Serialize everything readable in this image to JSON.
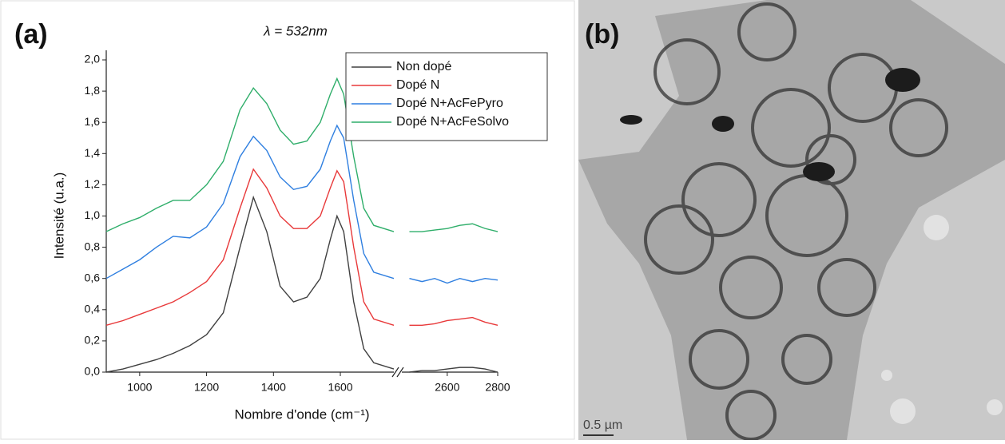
{
  "chart_data": {
    "type": "line",
    "panel_label": "(a)",
    "title": "λ = 532nm",
    "y_label": "Intensité (u.a.)",
    "x_label": "Nombre d'onde (cm⁻¹)",
    "ylim": [
      0,
      2.0
    ],
    "yticks": [
      {
        "value": 0,
        "label": "0,0"
      },
      {
        "value": 0.2,
        "label": "0,2"
      },
      {
        "value": 0.4,
        "label": "0,4"
      },
      {
        "value": 0.6,
        "label": "0,6"
      },
      {
        "value": 0.8,
        "label": "0,8"
      },
      {
        "value": 1.0,
        "label": "1,0"
      },
      {
        "value": 1.2,
        "label": "1,2"
      },
      {
        "value": 1.4,
        "label": "1,4"
      },
      {
        "value": 1.6,
        "label": "1,6"
      },
      {
        "value": 1.8,
        "label": "1,8"
      },
      {
        "value": 2.0,
        "label": "2,0"
      }
    ],
    "x_segments": [
      {
        "xlim": [
          900,
          1760
        ],
        "xticks": [
          1000,
          1200,
          1400,
          1600
        ]
      },
      {
        "xlim": [
          2420,
          2800
        ],
        "xticks": [
          2600,
          2800
        ]
      }
    ],
    "x": [
      900,
      950,
      1000,
      1050,
      1100,
      1150,
      1200,
      1250,
      1300,
      1340,
      1380,
      1420,
      1460,
      1500,
      1540,
      1570,
      1590,
      1610,
      1640,
      1670,
      1700,
      1760,
      2450,
      2500,
      2550,
      2600,
      2650,
      2700,
      2750,
      2800
    ],
    "series": [
      {
        "name": "Non dopé",
        "color": "#404040",
        "values": [
          0.0,
          0.02,
          0.05,
          0.08,
          0.12,
          0.17,
          0.24,
          0.38,
          0.8,
          1.12,
          0.9,
          0.55,
          0.45,
          0.48,
          0.6,
          0.85,
          1.0,
          0.9,
          0.45,
          0.15,
          0.06,
          0.02,
          0.0,
          0.01,
          0.01,
          0.02,
          0.03,
          0.03,
          0.02,
          0.0
        ]
      },
      {
        "name": "Dopé N",
        "color": "#e8393a",
        "values": [
          0.3,
          0.33,
          0.37,
          0.41,
          0.45,
          0.51,
          0.58,
          0.72,
          1.05,
          1.3,
          1.18,
          1.0,
          0.92,
          0.92,
          1.0,
          1.18,
          1.29,
          1.22,
          0.8,
          0.45,
          0.34,
          0.3,
          0.3,
          0.3,
          0.31,
          0.33,
          0.34,
          0.35,
          0.32,
          0.3
        ]
      },
      {
        "name": "Dopé N+AcFePyro",
        "color": "#2f7fe0",
        "values": [
          0.6,
          0.66,
          0.72,
          0.8,
          0.87,
          0.86,
          0.93,
          1.08,
          1.38,
          1.51,
          1.42,
          1.25,
          1.17,
          1.19,
          1.3,
          1.48,
          1.58,
          1.5,
          1.1,
          0.76,
          0.64,
          0.6,
          0.6,
          0.58,
          0.6,
          0.57,
          0.6,
          0.58,
          0.6,
          0.59
        ]
      },
      {
        "name": "Dopé N+AcFeSolvo",
        "color": "#2fae6a",
        "values": [
          0.9,
          0.95,
          0.99,
          1.05,
          1.1,
          1.1,
          1.2,
          1.35,
          1.68,
          1.82,
          1.72,
          1.55,
          1.46,
          1.48,
          1.6,
          1.78,
          1.88,
          1.78,
          1.38,
          1.05,
          0.94,
          0.9,
          0.9,
          0.9,
          0.91,
          0.92,
          0.94,
          0.95,
          0.92,
          0.9
        ]
      }
    ]
  },
  "image_panel": {
    "label": "(b)",
    "scale_bar": "0.5 µm"
  }
}
